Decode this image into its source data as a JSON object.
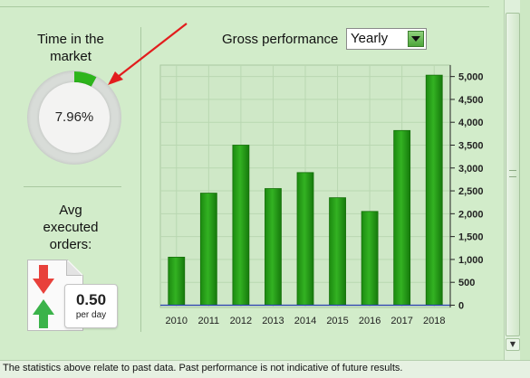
{
  "time_in_market": {
    "title_line1": "Time in the",
    "title_line2": "market",
    "value": "7.96%",
    "fraction": 0.0796,
    "ring_color": "#2db51c"
  },
  "avg_orders": {
    "title_line1": "Avg",
    "title_line2": "executed",
    "title_line3": "orders:",
    "value": "0.50",
    "unit": "per day",
    "down_color": "#e8413b",
    "up_color": "#3bb34a"
  },
  "performance": {
    "title": "Gross performance",
    "period_select": {
      "selected": "Yearly"
    }
  },
  "chart_data": {
    "type": "bar",
    "categories": [
      "2010",
      "2011",
      "2012",
      "2013",
      "2014",
      "2015",
      "2016",
      "2017",
      "2018"
    ],
    "values": [
      1050,
      2450,
      3500,
      2550,
      2900,
      2350,
      2050,
      3820,
      5030
    ],
    "y_ticks": [
      "0",
      "500",
      "1,000",
      "1,500",
      "2,000",
      "2,500",
      "3,000",
      "3,500",
      "4,000",
      "4,500",
      "5,000"
    ],
    "ylim": [
      -50,
      5250
    ],
    "y_axis_side": "right",
    "grid": true,
    "bar_color": "#33b222"
  },
  "footer": {
    "text": "The statistics above relate to past data. Past performance is not indicative of future results."
  }
}
